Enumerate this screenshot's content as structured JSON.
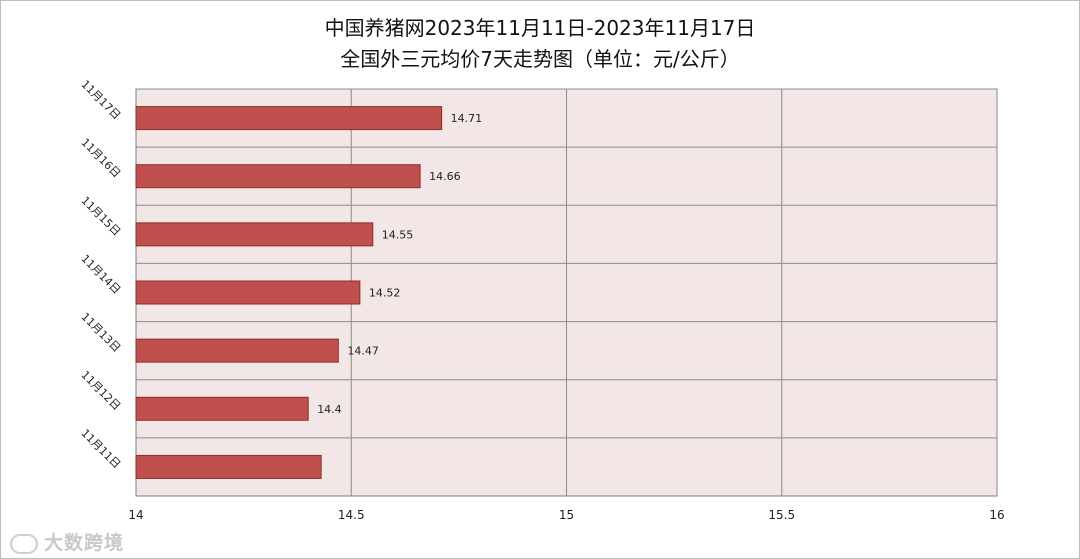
{
  "chart_data": {
    "type": "bar",
    "orientation": "horizontal",
    "title": "中国养猪网2023年11月11日-2023年11月17日",
    "subtitle": "全国外三元均价7天走势图（单位：元/公斤）",
    "categories": [
      "11月17日",
      "11月16日",
      "11月15日",
      "11月14日",
      "11月13日",
      "11月12日",
      "11月11日"
    ],
    "values": [
      14.71,
      14.66,
      14.55,
      14.52,
      14.47,
      14.4,
      14.43
    ],
    "data_labels": [
      "14.71",
      "14.66",
      "14.55",
      "14.52",
      "14.47",
      "14.4",
      ""
    ],
    "xlim": [
      14,
      16
    ],
    "xticks": [
      "14",
      "14.5",
      "15",
      "15.5",
      "16"
    ],
    "grid": true,
    "legend": "none",
    "colors": {
      "bar": "#c0504d",
      "bar_edge": "#8c2d2a",
      "plot_bg": "#f2e6e6",
      "grid": "#8c8c8c"
    }
  },
  "watermark": {
    "text": "大数跨境",
    "icon": "logo-icon"
  }
}
